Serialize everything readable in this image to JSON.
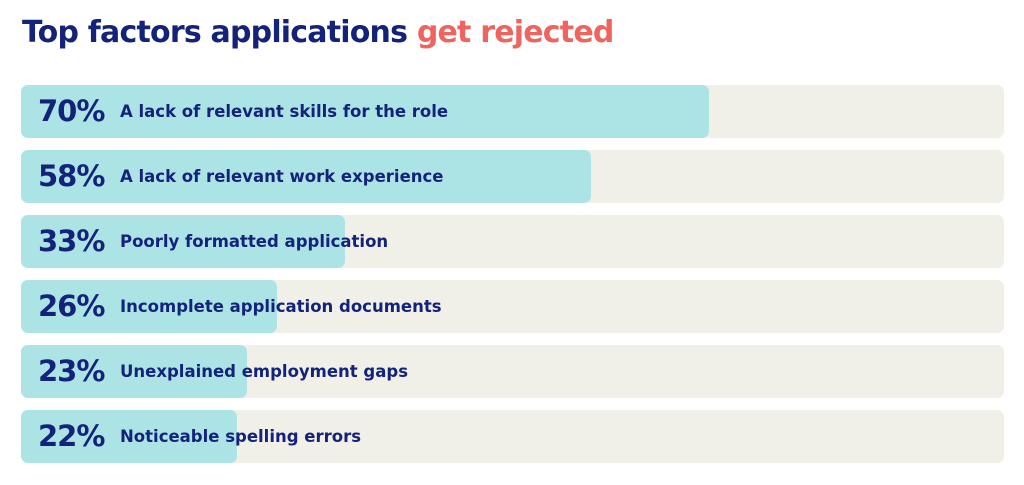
{
  "title": {
    "main": "Top factors applications ",
    "accent": "get rejected"
  },
  "colors": {
    "title": "#14237a",
    "accent": "#f0645f",
    "bar_fill": "#ace4e6",
    "bar_track": "#f0efe8"
  },
  "chart_data": {
    "type": "bar",
    "orientation": "horizontal",
    "title": "Top factors applications get rejected",
    "categories": [
      "A lack of relevant skills for the role",
      "A lack of relevant work experience",
      "Poorly formatted application",
      "Incomplete application documents",
      "Unexplained employment gaps",
      "Noticeable spelling errors"
    ],
    "values": [
      70,
      58,
      33,
      26,
      23,
      22
    ],
    "value_labels": [
      "70%",
      "58%",
      "33%",
      "26%",
      "23%",
      "22%"
    ],
    "xlim": [
      0,
      100
    ],
    "grid": false,
    "legend": "none"
  }
}
